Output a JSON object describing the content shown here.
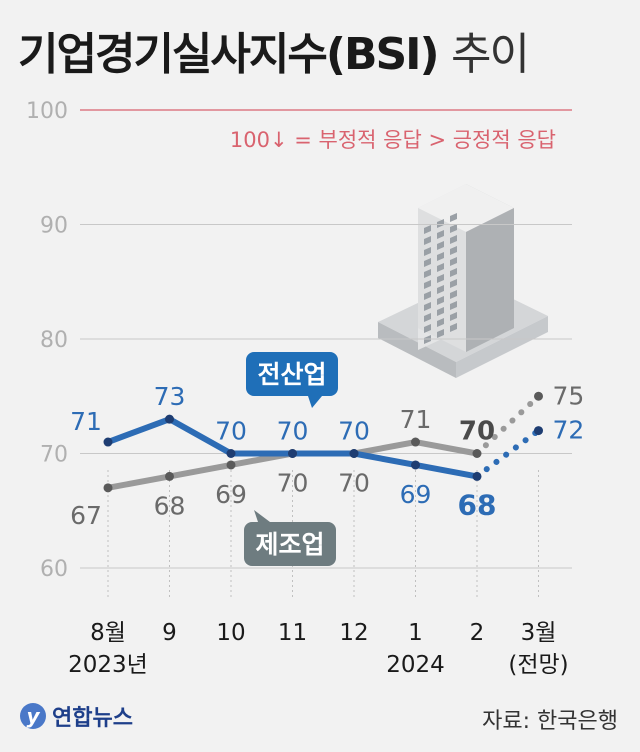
{
  "title": {
    "main": "기업경기실사지수(BSI)",
    "suffix": "추이"
  },
  "note": "100↓ = 부정적 응답 > 긍정적 응답",
  "source": "자료: 한국은행",
  "logo": "연합뉴스",
  "colors": {
    "manufacturing": "#9a9a9a",
    "manufacturing_label_bg": "#6e7c80",
    "all_industry": "#2d6cb5",
    "all_industry_label_bg": "#1f6fb8",
    "note": "#d9636f",
    "grid": "#c8c8c8"
  },
  "chart_data": {
    "type": "line",
    "ylim": [
      60,
      100
    ],
    "yticks": [
      "60",
      "70",
      "80",
      "90",
      "100"
    ],
    "categories": [
      "8월",
      "9",
      "10",
      "11",
      "12",
      "1",
      "2",
      "3월"
    ],
    "category_sublabels": [
      "2023년",
      "",
      "",
      "",
      "",
      "2024",
      "",
      "(전망)"
    ],
    "forecast_from_index": 6,
    "series": [
      {
        "name": "전산업",
        "values": [
          71,
          73,
          70,
          70,
          70,
          69,
          68,
          72
        ],
        "labels": [
          "71",
          "73",
          "70",
          "70",
          "70",
          "69",
          "68",
          "72"
        ]
      },
      {
        "name": "제조업",
        "values": [
          67,
          68,
          69,
          70,
          70,
          71,
          70,
          75
        ],
        "labels": [
          "67",
          "68",
          "69",
          "70",
          "70",
          "71",
          "70",
          "75"
        ]
      }
    ]
  }
}
